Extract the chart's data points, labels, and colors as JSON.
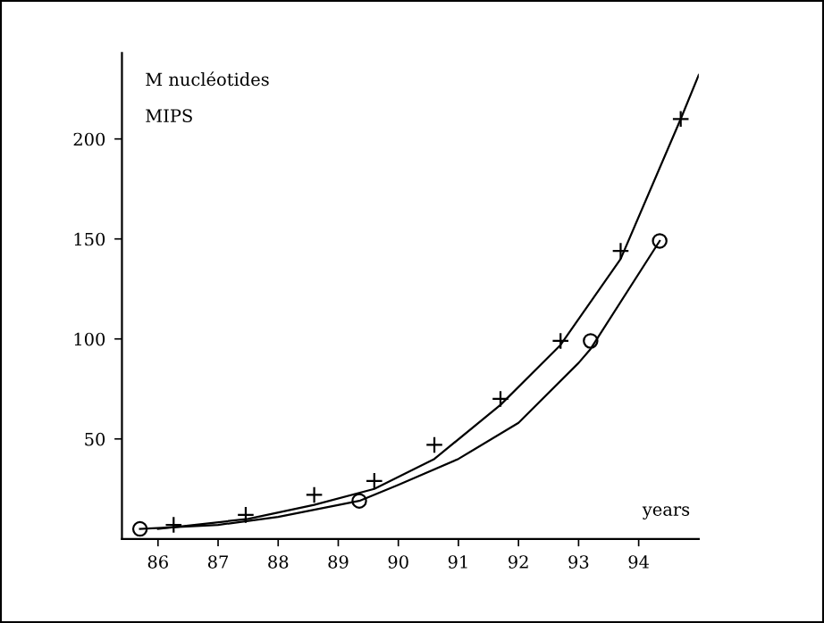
{
  "chart_data": {
    "type": "line",
    "xlabel": "years",
    "annotations": [
      "M nucléotides",
      "MIPS"
    ],
    "series": [
      {
        "color": "#000000",
        "x": [
          86.0,
          86.3,
          87.5,
          88.6,
          89.6,
          90.6,
          91.7,
          92.7,
          93.7,
          94.7,
          95.0
        ],
        "values": [
          5,
          6,
          10,
          17,
          25,
          40,
          67,
          97,
          140,
          210,
          232
        ]
      },
      {
        "color": "#000000",
        "x": [
          85.7,
          87.0,
          88.0,
          89.35,
          90.0,
          91.0,
          92.0,
          93.0,
          93.2,
          94.35
        ],
        "values": [
          5,
          7,
          11,
          19,
          27,
          40,
          58,
          88,
          95,
          149
        ]
      },
      {
        "type": "scatter",
        "color": "#000000",
        "marker": "cross",
        "x": [
          86.26,
          87.46,
          88.6,
          89.6,
          90.6,
          91.7,
          92.7,
          93.7,
          94.7
        ],
        "values": [
          7,
          12,
          22,
          29,
          47,
          70,
          99,
          144,
          210
        ]
      },
      {
        "type": "scatter",
        "color": "#000000",
        "marker": "circle",
        "x": [
          85.7,
          89.35,
          93.2,
          94.35
        ],
        "values": [
          5,
          19,
          99,
          149
        ]
      }
    ],
    "xlim": [
      85.4,
      95.0
    ],
    "ylim": [
      0,
      243
    ],
    "xticks": [
      86,
      87,
      88,
      89,
      90,
      91,
      92,
      93,
      94
    ],
    "yticks": [
      50,
      100,
      150,
      200
    ],
    "grid": false
  }
}
